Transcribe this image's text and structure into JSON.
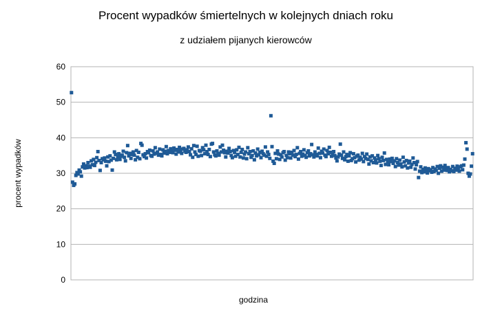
{
  "chart_data": {
    "type": "scatter",
    "title": "Procent wypadków śmiertelnych w kolejnych dniach roku",
    "subtitle": "z udziałem pijanych kierowców",
    "xlabel": "godzina",
    "ylabel": "procent wypadków",
    "color": "#1f5a96",
    "ylim": [
      0,
      60
    ],
    "yticks": [
      0,
      10,
      20,
      30,
      40,
      50,
      60
    ],
    "grid": true,
    "values": [
      52.7,
      27.5,
      26.6,
      27.0,
      29.4,
      30.2,
      29.8,
      30.9,
      30.4,
      29.2,
      31.8,
      32.6,
      31.5,
      32.1,
      31.6,
      33.0,
      32.0,
      31.7,
      33.5,
      32.4,
      33.9,
      32.2,
      33.1,
      34.4,
      36.1,
      33.6,
      30.8,
      33.0,
      34.1,
      33.8,
      34.3,
      33.4,
      32.1,
      34.6,
      33.3,
      34.9,
      33.7,
      30.9,
      34.2,
      36.0,
      35.3,
      33.8,
      34.6,
      35.5,
      33.9,
      34.8,
      35.1,
      36.2,
      34.5,
      33.5,
      35.8,
      37.8,
      34.9,
      35.6,
      34.2,
      35.3,
      36.0,
      35.1,
      33.8,
      36.4,
      34.5,
      35.9,
      34.1,
      38.4,
      37.9,
      35.2,
      34.7,
      35.5,
      34.3,
      36.1,
      35.8,
      36.5,
      35.0,
      34.8,
      36.3,
      35.4,
      37.2,
      35.6,
      36.0,
      35.1,
      36.8,
      35.3,
      34.9,
      36.6,
      35.7,
      36.2,
      37.5,
      35.5,
      36.4,
      35.9,
      36.9,
      36.3,
      35.8,
      37.1,
      36.5,
      35.4,
      36.7,
      36.0,
      37.3,
      36.4,
      35.6,
      36.8,
      37.0,
      36.2,
      35.9,
      36.6,
      37.4,
      36.1,
      35.2,
      36.9,
      34.5,
      37.8,
      36.0,
      35.3,
      37.6,
      34.8,
      36.4,
      36.2,
      35.0,
      37.2,
      36.6,
      35.5,
      37.9,
      36.1,
      35.3,
      36.7,
      34.7,
      38.2,
      38.4,
      36.0,
      35.2,
      34.9,
      36.3,
      35.6,
      35.1,
      37.4,
      36.0,
      37.9,
      36.5,
      35.8,
      34.6,
      36.2,
      35.7,
      37.0,
      36.1,
      35.0,
      34.4,
      36.4,
      35.9,
      34.8,
      36.6,
      35.3,
      37.3,
      34.6,
      35.9,
      36.7,
      34.3,
      35.4,
      36.0,
      34.1,
      37.2,
      35.5,
      36.1,
      34.5,
      35.0,
      36.3,
      33.8,
      35.7,
      34.9,
      36.8,
      35.2,
      35.9,
      34.4,
      36.2,
      35.5,
      35.1,
      37.4,
      34.8,
      36.0,
      35.3,
      34.2,
      46.2,
      37.5,
      33.4,
      32.8,
      35.6,
      34.1,
      36.3,
      35.4,
      33.9,
      35.2,
      34.6,
      35.8,
      36.1,
      33.7,
      35.0,
      34.4,
      36.0,
      35.5,
      34.3,
      35.9,
      35.1,
      36.4,
      34.7,
      35.3,
      37.2,
      34.0,
      35.6,
      36.1,
      34.8,
      35.4,
      36.6,
      35.0,
      34.5,
      35.8,
      36.3,
      34.9,
      35.5,
      38.1,
      35.2,
      34.6,
      36.0,
      35.3,
      34.9,
      37.1,
      35.6,
      34.4,
      36.2,
      35.7,
      36.8,
      35.1,
      34.7,
      36.4,
      35.5,
      37.3,
      35.9,
      34.8,
      35.2,
      36.1,
      35.0,
      34.3,
      33.5,
      34.6,
      35.4,
      38.2,
      35.1,
      34.2,
      36.0,
      33.8,
      34.7,
      35.3,
      33.4,
      34.9,
      35.8,
      33.6,
      34.1,
      35.5,
      34.4,
      33.2,
      34.8,
      35.1,
      33.7,
      34.5,
      34.0,
      35.6,
      33.3,
      34.7,
      34.2,
      35.4,
      33.9,
      32.6,
      34.6,
      33.5,
      34.9,
      33.0,
      34.3,
      33.8,
      32.9,
      35.0,
      34.1,
      33.4,
      32.2,
      34.5,
      33.6,
      35.7,
      32.5,
      33.9,
      33.1,
      32.4,
      34.0,
      33.3,
      34.2,
      32.8,
      33.5,
      31.9,
      34.1,
      33.0,
      32.3,
      33.7,
      32.6,
      31.8,
      34.5,
      33.2,
      32.1,
      33.6,
      31.5,
      32.9,
      33.4,
      31.7,
      32.5,
      34.3,
      33.0,
      31.2,
      32.4,
      33.3,
      28.8,
      30.6,
      31.8,
      30.2,
      31.1,
      30.4,
      31.5,
      30.9,
      30.1,
      31.3,
      30.7,
      31.0,
      30.3,
      31.6,
      30.5,
      31.2,
      30.8,
      31.9,
      30.0,
      31.4,
      32.1,
      30.6,
      31.7,
      30.9,
      32.2,
      31.3,
      30.8,
      31.6,
      30.4,
      31.1,
      30.7,
      31.9,
      30.5,
      31.4,
      30.9,
      32.0,
      31.2,
      30.6,
      31.8,
      32.1,
      31.0,
      32.3,
      34.0,
      38.6,
      36.8,
      30.0,
      29.2,
      29.8,
      32.0,
      35.5
    ]
  }
}
